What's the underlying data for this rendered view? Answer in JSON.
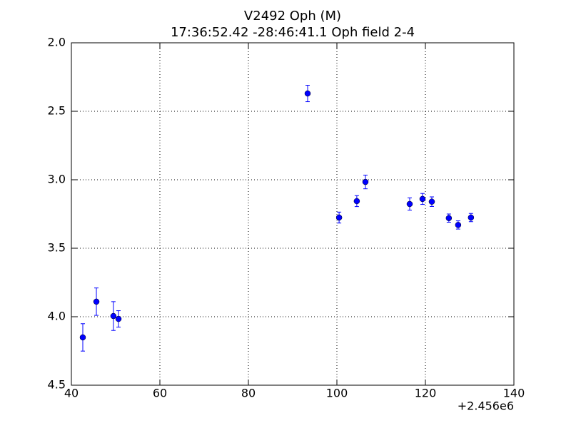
{
  "chart_data": {
    "type": "errorbar",
    "title": "V2492 Oph (M)",
    "subtitle": "17:36:52.42 -28:46:41.1 Oph field 2-4",
    "x_offset_label": "+2.456e6",
    "series": [
      {
        "color": "#0000ff",
        "x": [
          42.58,
          45.65,
          49.5,
          50.65,
          93.39,
          100.5,
          104.5,
          106.45,
          116.45,
          119.35,
          121.45,
          125.3,
          127.4,
          130.3
        ],
        "values": [
          4.151,
          3.89,
          3.995,
          4.016,
          2.37,
          3.276,
          3.156,
          3.016,
          3.177,
          3.14,
          3.16,
          3.28,
          3.33,
          3.276
        ],
        "errors": [
          0.1,
          0.1,
          0.105,
          0.06,
          0.06,
          0.04,
          0.04,
          0.05,
          0.045,
          0.04,
          0.035,
          0.03,
          0.03,
          0.03
        ]
      }
    ],
    "xlim": [
      40,
      140
    ],
    "xticks": [
      40,
      60,
      80,
      100,
      120,
      140
    ],
    "ylim": [
      2,
      4.5
    ],
    "y_inverted": true,
    "yticks": [
      {
        "value": 2,
        "label": "2.0"
      },
      2.5,
      {
        "value": 3,
        "label": "3.0"
      },
      3.5,
      {
        "value": 4,
        "label": "4.0"
      },
      4.5
    ],
    "grid": true
  }
}
